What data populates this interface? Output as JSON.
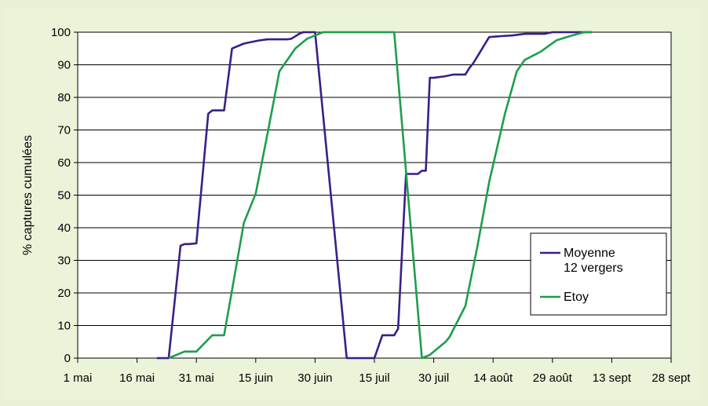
{
  "chart_data": {
    "type": "line",
    "title": "",
    "xlabel": "",
    "ylabel": "% captures cumulées",
    "x_ticks": [
      "1 mai",
      "16 mai",
      "31 mai",
      "15 juin",
      "30 juin",
      "15 juil",
      "30 juil",
      "14 août",
      "29 août",
      "13 sept",
      "28 sept"
    ],
    "y_ticks": [
      "0",
      "10",
      "20",
      "30",
      "40",
      "50",
      "60",
      "70",
      "80",
      "90",
      "100"
    ],
    "xlim": [
      0,
      150
    ],
    "ylim": [
      0,
      100
    ],
    "grid": "horizontal",
    "legend_position": "right",
    "series": [
      {
        "name": "Moyenne\n12 vergers",
        "legend_lines": [
          "Moyenne",
          "12 vergers"
        ],
        "color": "#3a1f88",
        "points": [
          [
            20,
            0
          ],
          [
            23,
            0
          ],
          [
            26,
            34.5
          ],
          [
            27,
            35
          ],
          [
            28,
            35
          ],
          [
            30,
            35.2
          ],
          [
            33,
            75
          ],
          [
            34,
            76
          ],
          [
            37,
            76
          ],
          [
            39,
            95
          ],
          [
            40,
            95.5
          ],
          [
            42,
            96.5
          ],
          [
            44,
            97
          ],
          [
            46,
            97.5
          ],
          [
            48,
            97.8
          ],
          [
            50,
            97.8
          ],
          [
            51,
            97.8
          ],
          [
            53,
            97.8
          ],
          [
            54,
            98
          ],
          [
            56,
            99.5
          ],
          [
            57,
            100
          ],
          [
            60,
            100
          ],
          [
            68,
            0
          ],
          [
            74,
            0
          ],
          [
            75,
            0
          ],
          [
            77,
            7
          ],
          [
            80,
            7
          ],
          [
            81,
            9
          ],
          [
            83,
            56.5
          ],
          [
            86,
            56.5
          ],
          [
            87,
            57.5
          ],
          [
            88,
            57.5
          ],
          [
            89,
            86
          ],
          [
            90,
            86
          ],
          [
            93,
            86.5
          ],
          [
            95,
            87
          ],
          [
            96,
            87
          ],
          [
            98,
            87
          ],
          [
            99,
            89
          ],
          [
            100,
            90.5
          ],
          [
            104,
            98.5
          ],
          [
            105,
            98.6
          ],
          [
            107,
            98.8
          ],
          [
            110,
            99
          ],
          [
            113,
            99.5
          ],
          [
            115,
            99.5
          ],
          [
            118,
            99.5
          ],
          [
            120,
            100
          ],
          [
            124,
            100
          ],
          [
            126,
            100
          ],
          [
            130,
            100
          ]
        ]
      },
      {
        "name": "Etoy",
        "legend_lines": [
          "Etoy"
        ],
        "color": "#1e9e4c",
        "points": [
          [
            23,
            0
          ],
          [
            27,
            2
          ],
          [
            30,
            2
          ],
          [
            34,
            7
          ],
          [
            37,
            7
          ],
          [
            42,
            41.5
          ],
          [
            45,
            50.5
          ],
          [
            48,
            69
          ],
          [
            51,
            88
          ],
          [
            53,
            91.5
          ],
          [
            55,
            95
          ],
          [
            58,
            98
          ],
          [
            62,
            100
          ],
          [
            68,
            100
          ],
          [
            75,
            100
          ],
          [
            80,
            100
          ],
          [
            87,
            0
          ],
          [
            89,
            1
          ],
          [
            93,
            5
          ],
          [
            94,
            6.5
          ],
          [
            98,
            16
          ],
          [
            101,
            34
          ],
          [
            104,
            54
          ],
          [
            108,
            75
          ],
          [
            111,
            88
          ],
          [
            113,
            91.5
          ],
          [
            117,
            94
          ],
          [
            121,
            97.5
          ],
          [
            125,
            99
          ],
          [
            128,
            100
          ],
          [
            130,
            100
          ]
        ]
      }
    ]
  }
}
